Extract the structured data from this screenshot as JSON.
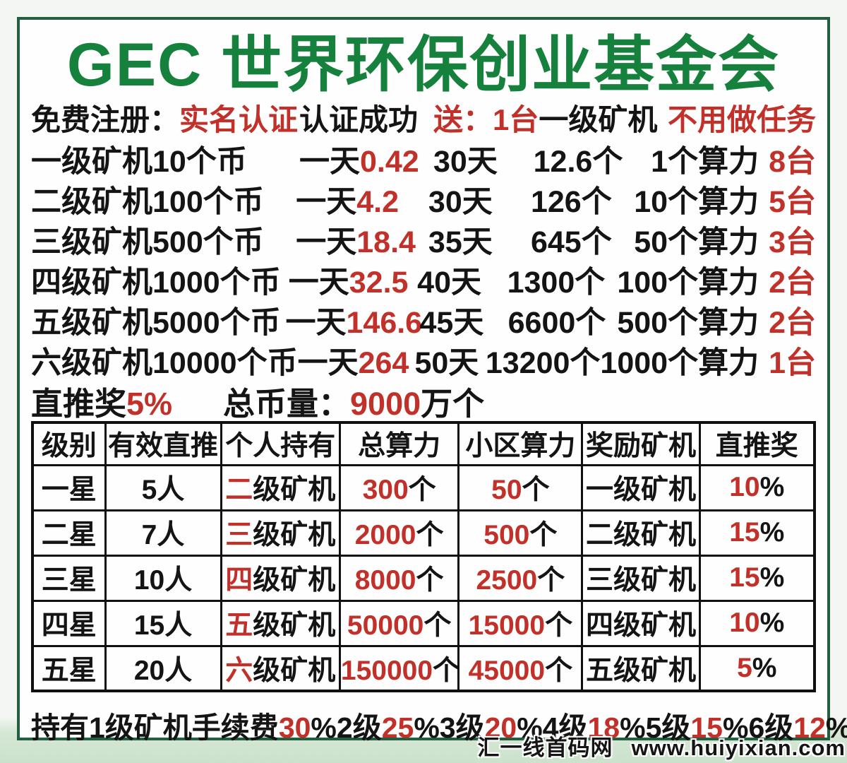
{
  "title": "GEC 世界环保创业基金会",
  "colors": {
    "green": "#16813c",
    "red": "#c1312a",
    "black": "#141414",
    "frame_border": "#235e41"
  },
  "intro": {
    "register_label": "免费注册：",
    "register_value": "实名认证",
    "auth_success": "认证成功",
    "gift_label": "送：1台",
    "gift_item": "一级矿机",
    "no_task": "不用做任务"
  },
  "miners": {
    "rows": [
      {
        "name": "一级矿机10个币",
        "day_label": "一天",
        "day_value": "0.42",
        "days": "30天",
        "total": "12.6个",
        "power": "1个算力",
        "units": "8台"
      },
      {
        "name": "二级矿机100个币",
        "day_label": "一天",
        "day_value": "4.2",
        "days": "30天",
        "total": "126个",
        "power": "10个算力",
        "units": "5台"
      },
      {
        "name": "三级矿机500个币",
        "day_label": "一天",
        "day_value": "18.4",
        "days": "35天",
        "total": "645个",
        "power": "50个算力",
        "units": "3台"
      },
      {
        "name": "四级矿机1000个币",
        "day_label": "一天",
        "day_value": "32.5",
        "days": "40天",
        "total": "1300个",
        "power": "100个算力",
        "units": "2台"
      },
      {
        "name": "五级矿机5000个币",
        "day_label": "一天",
        "day_value": "146.6",
        "days": "45天",
        "total": "6600个",
        "power": "500个算力",
        "units": "2台"
      },
      {
        "name": "六级矿机10000个币",
        "day_label": "一天",
        "day_value": "264",
        "days": "50天",
        "total": "13200个",
        "power": "1000个算力",
        "units": "1台"
      }
    ]
  },
  "summary": {
    "referral_label": "直推奖",
    "referral_value": "5%",
    "supply_label": "总币量：",
    "supply_value": "9000",
    "supply_unit": "万个"
  },
  "star_table": {
    "headers": [
      "级别",
      "有效直推",
      "个人持有",
      "总算力",
      "小区算力",
      "奖励矿机",
      "直推奖"
    ],
    "rows": [
      {
        "level": "一星",
        "direct": "5人",
        "hold_first": "二",
        "hold_rest": "级矿机",
        "total_power": "300",
        "total_unit": "个",
        "zone_power": "50",
        "zone_unit": "个",
        "reward": "一级矿机",
        "bonus": "10",
        "bonus_unit": "%"
      },
      {
        "level": "二星",
        "direct": "7人",
        "hold_first": "三",
        "hold_rest": "级矿机",
        "total_power": "2000",
        "total_unit": "个",
        "zone_power": "500",
        "zone_unit": "个",
        "reward": "二级矿机",
        "bonus": "15",
        "bonus_unit": "%"
      },
      {
        "level": "三星",
        "direct": "10人",
        "hold_first": "四",
        "hold_rest": "级矿机",
        "total_power": "8000",
        "total_unit": "个",
        "zone_power": "2500",
        "zone_unit": "个",
        "reward": "三级矿机",
        "bonus": "15",
        "bonus_unit": "%"
      },
      {
        "level": "四星",
        "direct": "15人",
        "hold_first": "五",
        "hold_rest": "级矿机",
        "total_power": "50000",
        "total_unit": "个",
        "zone_power": "15000",
        "zone_unit": "个",
        "reward": "四级矿机",
        "bonus": "10",
        "bonus_unit": "%"
      },
      {
        "level": "五星",
        "direct": "20人",
        "hold_first": "六",
        "hold_rest": "级矿机",
        "total_power": "150000",
        "total_unit": "个",
        "zone_power": "45000",
        "zone_unit": "个",
        "reward": "五级矿机",
        "bonus": "5",
        "bonus_unit": "%"
      }
    ]
  },
  "fees": {
    "lead_label": "持有1级矿机手续费",
    "lead_value": "30",
    "lead_unit": "%",
    "items": [
      {
        "label": "2级",
        "value": "25",
        "unit": "%"
      },
      {
        "label": "3级",
        "value": "20",
        "unit": "%"
      },
      {
        "label": "4级",
        "value": "18",
        "unit": "%"
      },
      {
        "label": "5级",
        "value": "15",
        "unit": "%"
      },
      {
        "label": "6级",
        "value": "12",
        "unit": "%"
      }
    ]
  },
  "watermark": {
    "site": "汇一线首码网",
    "url": "www.huiyixian.com"
  }
}
